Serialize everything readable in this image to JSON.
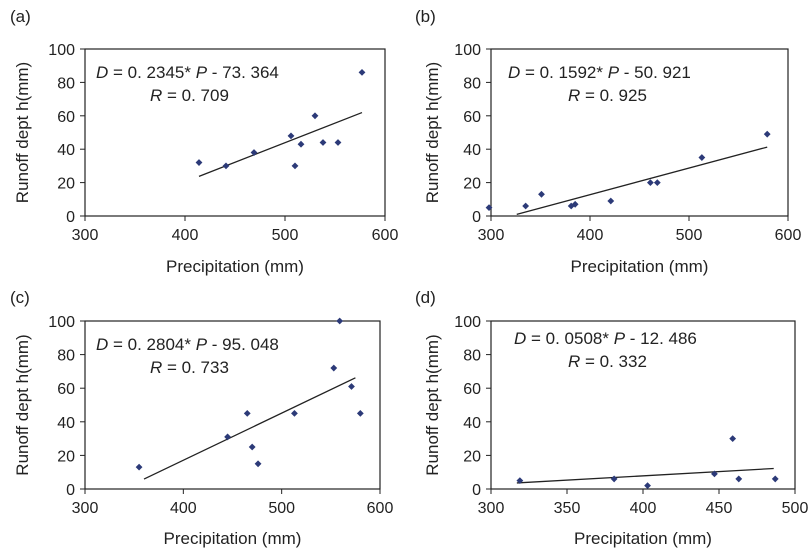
{
  "chart_data": [
    {
      "type": "scatter",
      "panel_label": "(a)",
      "xlabel": "Precipitation (mm)",
      "ylabel": "Runoff dept h(mm)",
      "xlim": [
        300,
        600
      ],
      "ylim": [
        0,
        100
      ],
      "xticks": [
        300,
        400,
        500,
        600
      ],
      "yticks": [
        0,
        20,
        40,
        60,
        80,
        100
      ],
      "equation_parts": [
        "D",
        " =  0. 2345* ",
        "P",
        " -   73. 364"
      ],
      "r_parts": [
        "R",
        " =  0. 709"
      ],
      "points": [
        [
          414,
          32
        ],
        [
          441,
          30
        ],
        [
          469,
          38
        ],
        [
          506,
          48
        ],
        [
          510,
          30
        ],
        [
          516,
          43
        ],
        [
          530,
          60
        ],
        [
          538,
          44
        ],
        [
          553,
          44
        ],
        [
          577,
          86
        ]
      ],
      "fit": {
        "slope": 0.2345,
        "intercept": -73.364,
        "x_range": [
          414,
          577
        ]
      }
    },
    {
      "type": "scatter",
      "panel_label": "(b)",
      "xlabel": "Precipitation (mm)",
      "ylabel": "Runoff dept h(mm)",
      "xlim": [
        300,
        600
      ],
      "ylim": [
        0,
        100
      ],
      "xticks": [
        300,
        400,
        500,
        600
      ],
      "yticks": [
        0,
        20,
        40,
        60,
        80,
        100
      ],
      "equation_parts": [
        "D",
        " =  0. 1592* ",
        "P",
        " -   50. 921"
      ],
      "r_parts": [
        "R",
        " =  0. 925"
      ],
      "points": [
        [
          298,
          5
        ],
        [
          335,
          6
        ],
        [
          351,
          13
        ],
        [
          381,
          6
        ],
        [
          385,
          7
        ],
        [
          421,
          9
        ],
        [
          461,
          20
        ],
        [
          468,
          20
        ],
        [
          513,
          35
        ],
        [
          579,
          49
        ]
      ],
      "fit": {
        "slope": 0.1592,
        "intercept": -50.921,
        "x_range": [
          326,
          579
        ]
      }
    },
    {
      "type": "scatter",
      "panel_label": "(c)",
      "xlabel": "Precipitation (mm)",
      "ylabel": "Runoff dept h(mm)",
      "xlim": [
        300,
        600
      ],
      "ylim": [
        0,
        100
      ],
      "xticks": [
        300,
        400,
        500,
        600
      ],
      "yticks": [
        0,
        20,
        40,
        60,
        80,
        100
      ],
      "equation_parts": [
        "D",
        " =  0. 2804* ",
        "P",
        " -   95. 048"
      ],
      "r_parts": [
        "R",
        " =  0. 733"
      ],
      "points": [
        [
          355,
          13
        ],
        [
          445,
          31
        ],
        [
          465,
          45
        ],
        [
          470,
          25
        ],
        [
          476,
          15
        ],
        [
          513,
          45
        ],
        [
          553,
          72
        ],
        [
          559,
          100
        ],
        [
          571,
          61
        ],
        [
          580,
          45
        ]
      ],
      "fit": {
        "slope": 0.2804,
        "intercept": -95.048,
        "x_range": [
          360,
          575
        ]
      }
    },
    {
      "type": "scatter",
      "panel_label": "(d)",
      "xlabel": "Precipitation (mm)",
      "ylabel": "Runoff dept h(mm)",
      "xlim": [
        300,
        500
      ],
      "ylim": [
        0,
        100
      ],
      "xticks": [
        300,
        350,
        400,
        450,
        500
      ],
      "yticks": [
        0,
        20,
        40,
        60,
        80,
        100
      ],
      "equation_parts": [
        "D",
        " =  0. 0508* ",
        "P",
        " -   12. 486"
      ],
      "r_parts": [
        "R",
        " =  0. 332"
      ],
      "points": [
        [
          319,
          5
        ],
        [
          381,
          6
        ],
        [
          403,
          2
        ],
        [
          447,
          9
        ],
        [
          459,
          30
        ],
        [
          463,
          6
        ],
        [
          487,
          6
        ]
      ],
      "fit": {
        "slope": 0.0508,
        "intercept": -12.486,
        "x_range": [
          317,
          486
        ]
      }
    }
  ],
  "colors": {
    "marker": "#2c3a78",
    "line": "#222222",
    "axis": "#222222"
  }
}
